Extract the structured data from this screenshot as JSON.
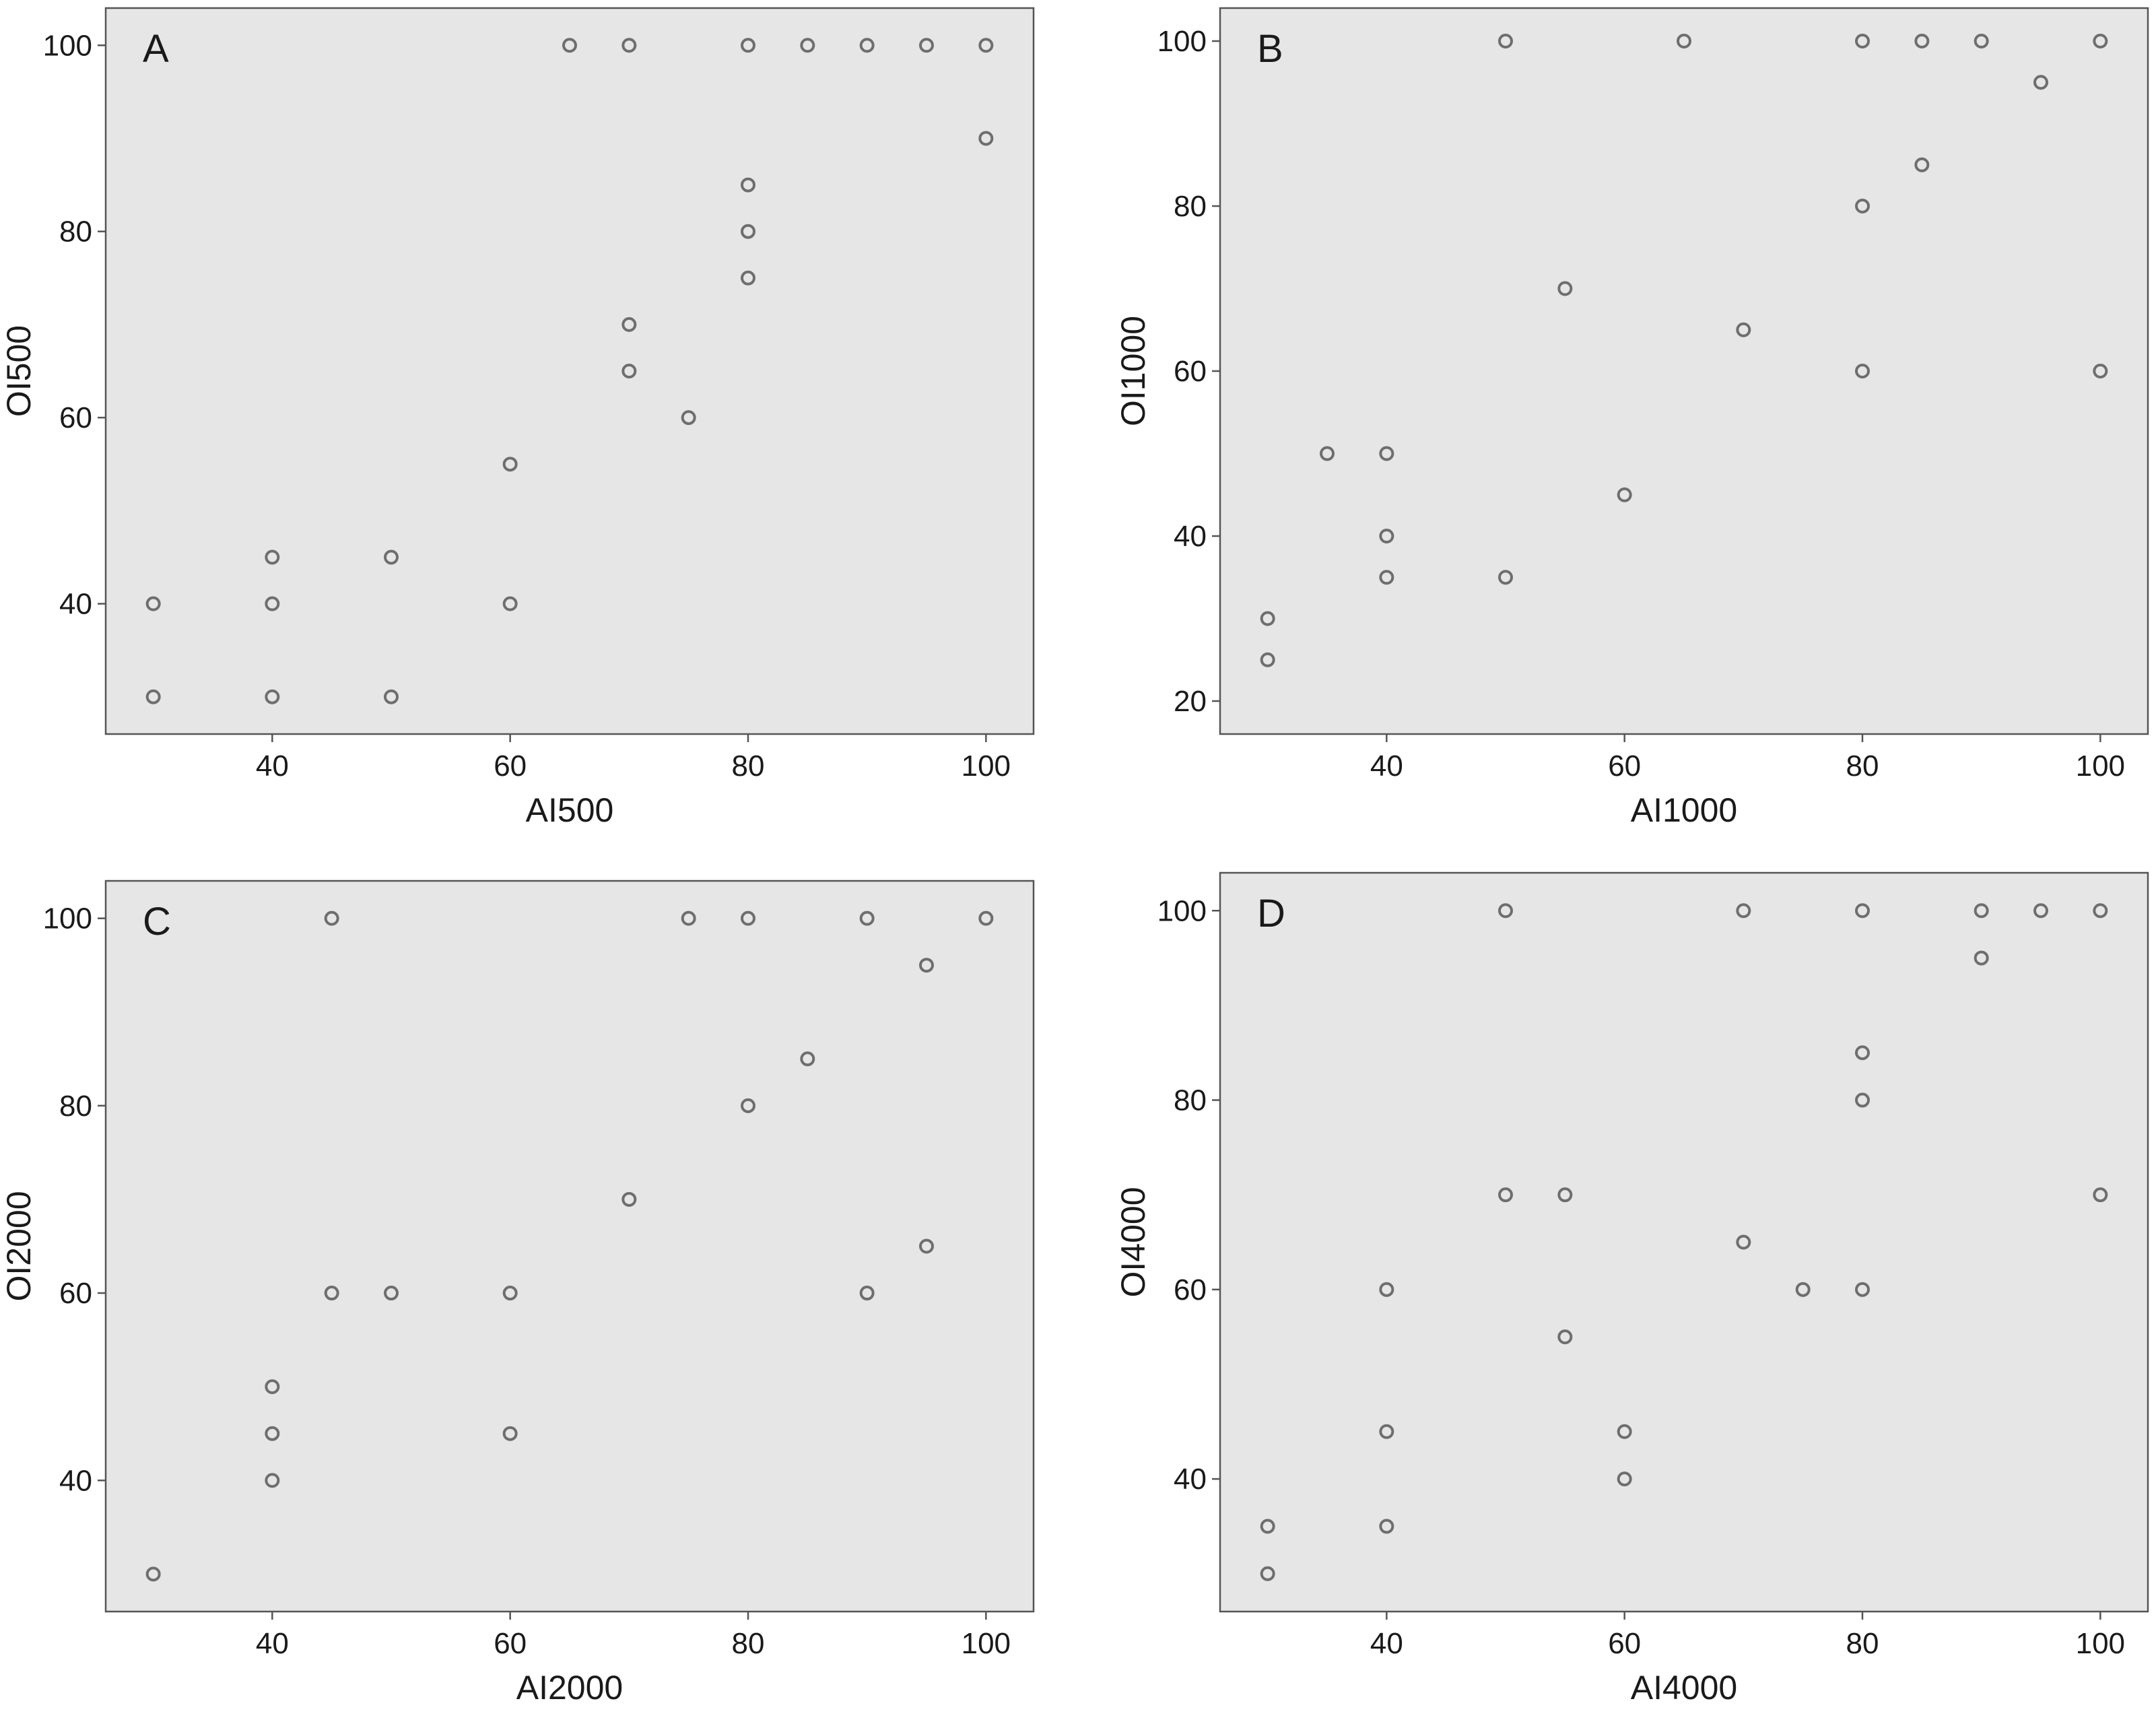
{
  "figure": {
    "colors": {
      "plot_background": "#e6e6e6",
      "frame": "#555555",
      "marker": "#6e6e6e",
      "text": "#1a1a1a"
    },
    "marker_style": "open-circle"
  },
  "chart_data": [
    {
      "type": "scatter",
      "panel": "A",
      "title": "",
      "xlabel": "AI500",
      "ylabel": "OI500",
      "xlim": [
        26,
        104
      ],
      "ylim": [
        26,
        104
      ],
      "xticks": [
        40,
        60,
        80,
        100
      ],
      "yticks": [
        40,
        60,
        80,
        100
      ],
      "grid": false,
      "points": [
        {
          "x": 65,
          "y": 100
        },
        {
          "x": 70,
          "y": 100
        },
        {
          "x": 80,
          "y": 100
        },
        {
          "x": 85,
          "y": 100
        },
        {
          "x": 90,
          "y": 100
        },
        {
          "x": 95,
          "y": 100
        },
        {
          "x": 100,
          "y": 100
        },
        {
          "x": 100,
          "y": 90
        },
        {
          "x": 80,
          "y": 85
        },
        {
          "x": 80,
          "y": 80
        },
        {
          "x": 80,
          "y": 75
        },
        {
          "x": 70,
          "y": 70
        },
        {
          "x": 70,
          "y": 65
        },
        {
          "x": 75,
          "y": 60
        },
        {
          "x": 60,
          "y": 55
        },
        {
          "x": 60,
          "y": 40
        },
        {
          "x": 40,
          "y": 45
        },
        {
          "x": 50,
          "y": 45
        },
        {
          "x": 30,
          "y": 40
        },
        {
          "x": 40,
          "y": 40
        },
        {
          "x": 30,
          "y": 30
        },
        {
          "x": 40,
          "y": 30
        },
        {
          "x": 50,
          "y": 30
        }
      ]
    },
    {
      "type": "scatter",
      "panel": "B",
      "title": "",
      "xlabel": "AI1000",
      "ylabel": "OI1000",
      "xlim": [
        26,
        104
      ],
      "ylim": [
        16,
        104
      ],
      "xticks": [
        40,
        60,
        80,
        100
      ],
      "yticks": [
        20,
        40,
        60,
        80,
        100
      ],
      "grid": false,
      "points": [
        {
          "x": 50,
          "y": 100
        },
        {
          "x": 65,
          "y": 100
        },
        {
          "x": 80,
          "y": 100
        },
        {
          "x": 85,
          "y": 100
        },
        {
          "x": 90,
          "y": 100
        },
        {
          "x": 100,
          "y": 100
        },
        {
          "x": 95,
          "y": 95
        },
        {
          "x": 85,
          "y": 85
        },
        {
          "x": 80,
          "y": 80
        },
        {
          "x": 55,
          "y": 70
        },
        {
          "x": 70,
          "y": 65
        },
        {
          "x": 80,
          "y": 60
        },
        {
          "x": 100,
          "y": 60
        },
        {
          "x": 35,
          "y": 50
        },
        {
          "x": 40,
          "y": 50
        },
        {
          "x": 60,
          "y": 45
        },
        {
          "x": 40,
          "y": 40
        },
        {
          "x": 40,
          "y": 35
        },
        {
          "x": 50,
          "y": 35
        },
        {
          "x": 30,
          "y": 30
        },
        {
          "x": 30,
          "y": 25
        }
      ]
    },
    {
      "type": "scatter",
      "panel": "C",
      "title": "",
      "xlabel": "AI2000",
      "ylabel": "OI2000",
      "xlim": [
        26,
        104
      ],
      "ylim": [
        26,
        104
      ],
      "xticks": [
        40,
        60,
        80,
        100
      ],
      "yticks": [
        40,
        60,
        80,
        100
      ],
      "grid": false,
      "points": [
        {
          "x": 45,
          "y": 100
        },
        {
          "x": 75,
          "y": 100
        },
        {
          "x": 80,
          "y": 100
        },
        {
          "x": 90,
          "y": 100
        },
        {
          "x": 100,
          "y": 100
        },
        {
          "x": 95,
          "y": 95
        },
        {
          "x": 85,
          "y": 85
        },
        {
          "x": 80,
          "y": 80
        },
        {
          "x": 70,
          "y": 70
        },
        {
          "x": 95,
          "y": 65
        },
        {
          "x": 45,
          "y": 60
        },
        {
          "x": 50,
          "y": 60
        },
        {
          "x": 60,
          "y": 60
        },
        {
          "x": 90,
          "y": 60
        },
        {
          "x": 40,
          "y": 50
        },
        {
          "x": 40,
          "y": 45
        },
        {
          "x": 60,
          "y": 45
        },
        {
          "x": 40,
          "y": 40
        },
        {
          "x": 30,
          "y": 30
        }
      ]
    },
    {
      "type": "scatter",
      "panel": "D",
      "title": "",
      "xlabel": "AI4000",
      "ylabel": "OI4000",
      "xlim": [
        26,
        104
      ],
      "ylim": [
        26,
        104
      ],
      "xticks": [
        40,
        60,
        80,
        100
      ],
      "yticks": [
        40,
        60,
        80,
        100
      ],
      "grid": false,
      "points": [
        {
          "x": 50,
          "y": 100
        },
        {
          "x": 70,
          "y": 100
        },
        {
          "x": 80,
          "y": 100
        },
        {
          "x": 90,
          "y": 100
        },
        {
          "x": 95,
          "y": 100
        },
        {
          "x": 100,
          "y": 100
        },
        {
          "x": 90,
          "y": 95
        },
        {
          "x": 80,
          "y": 85
        },
        {
          "x": 80,
          "y": 80
        },
        {
          "x": 50,
          "y": 70
        },
        {
          "x": 55,
          "y": 70
        },
        {
          "x": 100,
          "y": 70
        },
        {
          "x": 70,
          "y": 65
        },
        {
          "x": 40,
          "y": 60
        },
        {
          "x": 75,
          "y": 60
        },
        {
          "x": 80,
          "y": 60
        },
        {
          "x": 55,
          "y": 55
        },
        {
          "x": 40,
          "y": 45
        },
        {
          "x": 60,
          "y": 45
        },
        {
          "x": 60,
          "y": 40
        },
        {
          "x": 30,
          "y": 35
        },
        {
          "x": 40,
          "y": 35
        },
        {
          "x": 30,
          "y": 30
        }
      ]
    }
  ]
}
